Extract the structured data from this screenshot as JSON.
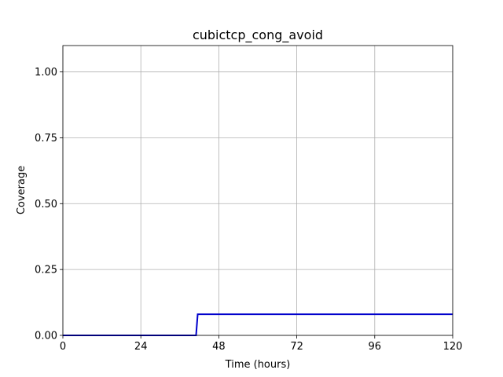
{
  "chart_data": {
    "type": "line",
    "title": "cubictcp_cong_avoid",
    "xlabel": "Time (hours)",
    "ylabel": "Coverage",
    "xlim": [
      0,
      120
    ],
    "ylim": [
      0,
      1.1
    ],
    "xticks": [
      0,
      24,
      48,
      72,
      96,
      120
    ],
    "xtick_labels": [
      "0",
      "24",
      "48",
      "72",
      "96",
      "120"
    ],
    "yticks": [
      0.0,
      0.25,
      0.5,
      0.75,
      1.0
    ],
    "ytick_labels": [
      "0.00",
      "0.25",
      "0.50",
      "0.75",
      "1.00"
    ],
    "grid": true,
    "series": [
      {
        "color": "#0000cc",
        "x": [
          0,
          41,
          41.5,
          120
        ],
        "y": [
          0.0,
          0.0,
          0.08,
          0.08
        ]
      }
    ]
  }
}
